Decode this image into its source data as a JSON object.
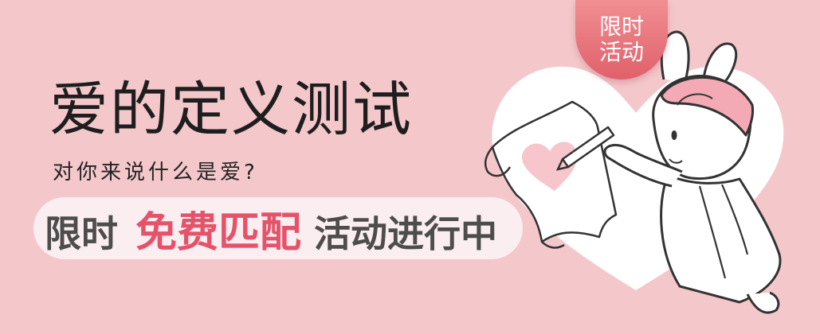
{
  "title": "爱的定义测试",
  "subtitle": "对你来说什么是爱?",
  "promo": {
    "prefix": "限时",
    "highlight": "免费匹配",
    "suffix": "活动进行中"
  },
  "badge": {
    "line1": "限时",
    "line2": "活动"
  },
  "colors": {
    "background": "#f4c7cb",
    "accent": "#e5536a",
    "badge": "#e56a74",
    "heart": "#f6c6cc"
  },
  "icons": [
    "heart-icon",
    "bunny-illustration",
    "pencil-icon",
    "paper-scroll-icon"
  ]
}
